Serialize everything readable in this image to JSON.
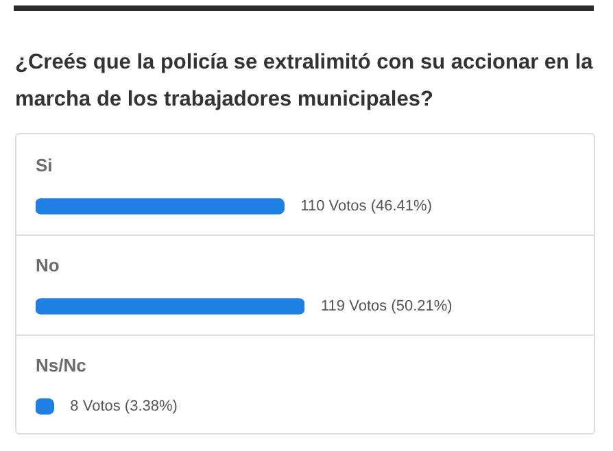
{
  "chart_data": {
    "type": "bar",
    "orientation": "horizontal",
    "title": "¿Creés que la policía se extralimitó con su accionar en la marcha de los trabajadores municipales?",
    "categories": [
      "Si",
      "No",
      "Ns/Nc"
    ],
    "values": [
      110,
      119,
      8
    ],
    "color": "#1e80e2",
    "value_labels": [
      "110 Votos (46.41%)",
      "119 Votos (50.21%)",
      "8 Votos (3.38%)"
    ]
  }
}
